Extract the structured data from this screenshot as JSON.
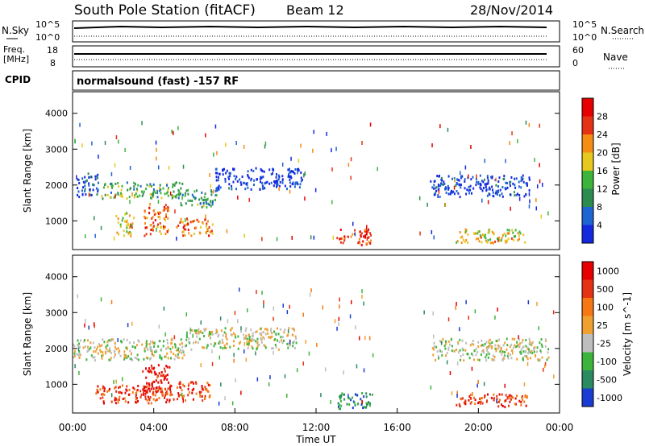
{
  "header": {
    "station": "South Pole Station (fitACF)",
    "beam": "Beam 12",
    "date": "28/Nov/2014"
  },
  "nsky_panel": {
    "left_label": "N.Sky",
    "right_label": "N.Search",
    "left_ticks": [
      "10^5",
      "10^0"
    ],
    "right_ticks": [
      "10^5",
      "10^0"
    ]
  },
  "freq_panel": {
    "left_label_line1": "Freq.",
    "left_label_line2": "[MHz]",
    "right_label": "Nave",
    "left_ticks": [
      "18",
      "8"
    ],
    "right_ticks": [
      "60",
      "0"
    ]
  },
  "cpid_panel": {
    "label": "CPID",
    "text": "normalsound (fast) -157 RF"
  },
  "chart_data": [
    {
      "type": "heatmap",
      "name": "power",
      "ylabel": "Slant Range [km]",
      "ylim": [
        200,
        4600
      ],
      "yticks": [
        "1000",
        "2000",
        "3000",
        "4000"
      ],
      "ytick_values": [
        1000,
        2000,
        3000,
        4000
      ],
      "colorbar_label": "Power [dB]",
      "colorbar_ticks": [
        "4",
        "8",
        "12",
        "16",
        "20",
        "24",
        "28"
      ],
      "colorbar_colors": [
        "#1428e0",
        "#1e64d2",
        "#2c8c50",
        "#3cb43c",
        "#e6c81e",
        "#f58c14",
        "#e63214",
        "#e60000"
      ],
      "regions": [
        {
          "t0": 0.2,
          "t1": 1.3,
          "r0": 1700,
          "r1": 2350,
          "level": 0.12
        },
        {
          "t0": 1.4,
          "t1": 5.4,
          "r0": 1650,
          "r1": 2100,
          "level": 0.4
        },
        {
          "t0": 5.3,
          "t1": 7.1,
          "r0": 1400,
          "r1": 1900,
          "level": 0.35
        },
        {
          "t0": 7.0,
          "t1": 11.3,
          "r0": 1900,
          "r1": 2500,
          "level": 0.08
        },
        {
          "t0": 2.1,
          "t1": 3.0,
          "r0": 600,
          "r1": 1250,
          "level": 0.6
        },
        {
          "t0": 3.5,
          "t1": 4.7,
          "r0": 600,
          "r1": 1500,
          "level": 0.75
        },
        {
          "t0": 5.1,
          "t1": 6.9,
          "r0": 600,
          "r1": 1100,
          "level": 0.72
        },
        {
          "t0": 13.0,
          "t1": 14.7,
          "r0": 350,
          "r1": 800,
          "level": 0.8
        },
        {
          "t0": 18.8,
          "t1": 22.3,
          "r0": 400,
          "r1": 800,
          "level": 0.6
        },
        {
          "t0": 17.6,
          "t1": 22.5,
          "r0": 1700,
          "r1": 2300,
          "level": 0.1
        }
      ]
    },
    {
      "type": "heatmap",
      "name": "velocity",
      "ylabel": "Slant Range [km]",
      "ylim": [
        200,
        4600
      ],
      "yticks": [
        "1000",
        "2000",
        "3000",
        "4000"
      ],
      "ytick_values": [
        1000,
        2000,
        3000,
        4000
      ],
      "xticks": [
        "00:00",
        "04:00",
        "08:00",
        "12:00",
        "16:00",
        "20:00",
        "00:00"
      ],
      "xtick_hours": [
        0,
        4,
        8,
        12,
        16,
        20,
        24
      ],
      "xlabel": "Time UT",
      "colorbar_label": "Velocity [m s^-1]",
      "colorbar_ticks": [
        "1000",
        "500",
        "100",
        "25",
        "-25",
        "-100",
        "-500",
        "-1000"
      ],
      "colorbar_colors": [
        "#1a3cd2",
        "#2a8a60",
        "#3cb43c",
        "#bebebe",
        "#f0a030",
        "#f57814",
        "#e63214",
        "#e60000"
      ],
      "regions": [
        {
          "t0": 0.0,
          "t1": 5.5,
          "r0": 1700,
          "r1": 2300,
          "level": 0.45
        },
        {
          "t0": 5.5,
          "t1": 11.0,
          "r0": 2000,
          "r1": 2600,
          "level": 0.45
        },
        {
          "t0": 17.7,
          "t1": 23.5,
          "r0": 1700,
          "r1": 2300,
          "level": 0.45
        },
        {
          "t0": 1.0,
          "t1": 5.0,
          "r0": 500,
          "r1": 1000,
          "level": 0.8
        },
        {
          "t0": 3.4,
          "t1": 4.8,
          "r0": 800,
          "r1": 1600,
          "level": 0.9
        },
        {
          "t0": 5.1,
          "t1": 6.8,
          "r0": 550,
          "r1": 1100,
          "level": 0.8
        },
        {
          "t0": 13.0,
          "t1": 14.8,
          "r0": 350,
          "r1": 800,
          "level": 0.2
        },
        {
          "t0": 18.8,
          "t1": 22.5,
          "r0": 400,
          "r1": 750,
          "level": 0.8
        }
      ]
    }
  ]
}
